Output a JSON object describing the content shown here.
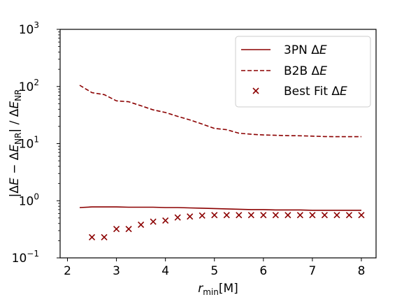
{
  "chart_data": {
    "type": "line",
    "xlabel_main": "r",
    "xlabel_sub": "min",
    "xlabel_unit": "[M]",
    "ylabel_parts": {
      "abs_open": "|Δ",
      "e1": "E",
      "minus": " − Δ",
      "e2": "E",
      "sub1": "NR",
      "mid": "| / Δ",
      "e3": "E",
      "sub2": "NR"
    },
    "xlim": [
      1.85,
      8.3
    ],
    "ylim": [
      0.1,
      1000
    ],
    "yscale": "log",
    "xticks": [
      2,
      3,
      4,
      5,
      6,
      7,
      8
    ],
    "yticks": [
      {
        "value": 0.1,
        "base": "10",
        "exp": "−1"
      },
      {
        "value": 1,
        "base": "10",
        "exp": "0"
      },
      {
        "value": 10,
        "base": "10",
        "exp": "1"
      },
      {
        "value": 100,
        "base": "10",
        "exp": "2"
      },
      {
        "value": 1000,
        "base": "10",
        "exp": "3"
      }
    ],
    "color": "#8b0000",
    "legend_position": "top-right",
    "series": [
      {
        "name_prefix": "3PN Δ",
        "name_var": "E",
        "style": "solid",
        "x": [
          2.25,
          2.5,
          2.75,
          3.0,
          3.25,
          3.5,
          3.75,
          4.0,
          4.25,
          4.5,
          4.75,
          5.0,
          5.25,
          5.5,
          5.75,
          6.0,
          6.25,
          6.5,
          6.75,
          7.0,
          7.25,
          7.5,
          7.75,
          8.0
        ],
        "y": [
          0.76,
          0.78,
          0.78,
          0.78,
          0.77,
          0.77,
          0.77,
          0.76,
          0.76,
          0.75,
          0.74,
          0.73,
          0.72,
          0.71,
          0.7,
          0.7,
          0.69,
          0.69,
          0.69,
          0.68,
          0.68,
          0.68,
          0.68,
          0.68
        ]
      },
      {
        "name_prefix": "B2B Δ",
        "name_var": "E",
        "style": "dashed",
        "x": [
          2.25,
          2.5,
          2.75,
          3.0,
          3.25,
          3.5,
          3.75,
          4.0,
          4.25,
          4.5,
          4.75,
          5.0,
          5.25,
          5.5,
          5.75,
          6.0,
          6.25,
          6.5,
          6.75,
          7.0,
          7.25,
          7.5,
          7.75,
          8.0
        ],
        "y": [
          105,
          78,
          72,
          56,
          54,
          46,
          39,
          35,
          30,
          26,
          22,
          18.5,
          17.5,
          15.2,
          14.6,
          14.2,
          14.0,
          13.8,
          13.7,
          13.5,
          13.3,
          13.2,
          13.2,
          13.2
        ]
      },
      {
        "name_prefix": "Best Fit Δ",
        "name_var": "E",
        "style": "x-marker",
        "x": [
          2.5,
          2.75,
          3.0,
          3.25,
          3.5,
          3.75,
          4.0,
          4.25,
          4.5,
          4.75,
          5.0,
          5.25,
          5.5,
          5.75,
          6.0,
          6.25,
          6.5,
          6.75,
          7.0,
          7.25,
          7.5,
          7.75,
          8.0
        ],
        "y": [
          0.23,
          0.23,
          0.32,
          0.32,
          0.38,
          0.43,
          0.45,
          0.51,
          0.53,
          0.55,
          0.56,
          0.56,
          0.56,
          0.56,
          0.56,
          0.56,
          0.56,
          0.56,
          0.56,
          0.56,
          0.56,
          0.56,
          0.56
        ]
      }
    ]
  }
}
